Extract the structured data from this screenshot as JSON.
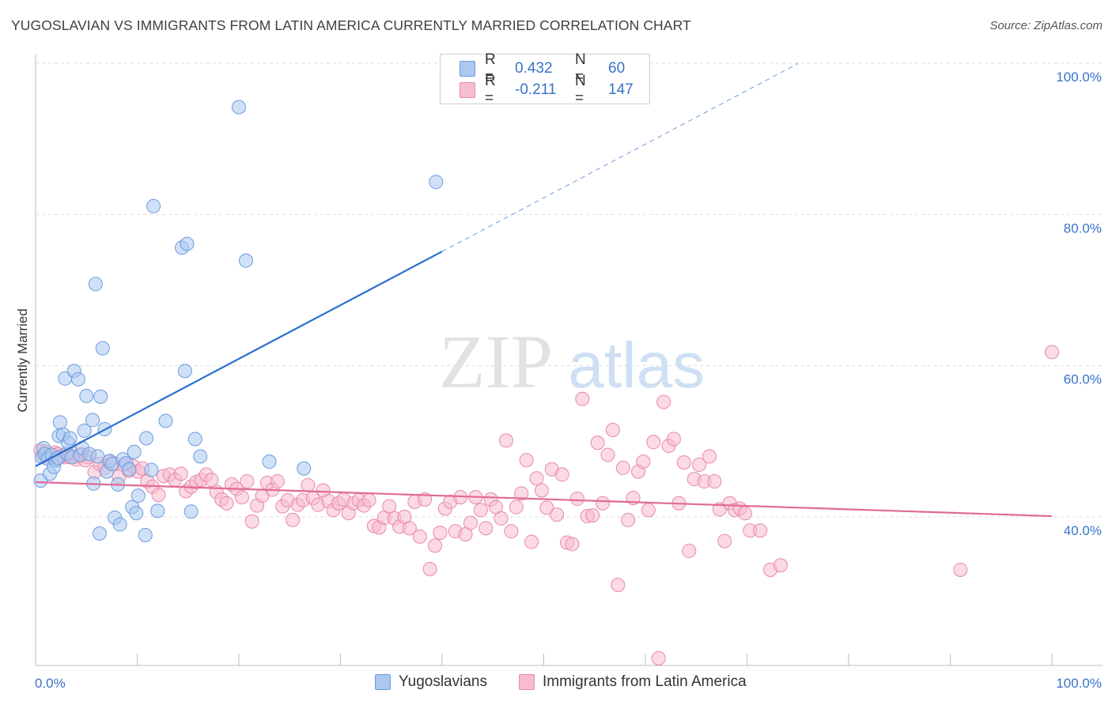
{
  "header": {
    "title": "YUGOSLAVIAN VS IMMIGRANTS FROM LATIN AMERICA CURRENTLY MARRIED CORRELATION CHART",
    "source": "Source: ZipAtlas.com"
  },
  "watermark": {
    "zip": "ZIP",
    "atlas": "atlas"
  },
  "legend": {
    "rows": [
      {
        "r_label": "R =",
        "r_value": "0.432",
        "n_label": "N =",
        "n_value": "60"
      },
      {
        "r_label": "R =",
        "r_value": "-0.211",
        "n_label": "N =",
        "n_value": "147"
      }
    ]
  },
  "bottom_legend": {
    "items": [
      "Yugoslavians",
      "Immigrants from Latin America"
    ]
  },
  "colors": {
    "blue_fill": "#aac8f0",
    "blue_stroke": "#6b9be0",
    "blue_line": "#2a6fd0",
    "pink_fill": "#f7bcd0",
    "pink_stroke": "#e888a8",
    "pink_line": "#e06a98",
    "tick_text": "#3a72c8",
    "grid": "#dcdcdc"
  },
  "chart_data": {
    "type": "scatter",
    "title": "YUGOSLAVIAN VS IMMIGRANTS FROM LATIN AMERICA CURRENTLY MARRIED CORRELATION CHART",
    "xlabel": "",
    "ylabel": "Currently Married",
    "xlim": [
      0,
      100
    ],
    "ylim": [
      20,
      104
    ],
    "x_tick_labels": [
      "0.0%",
      "100.0%"
    ],
    "y_ticks": [
      40,
      60,
      80,
      100
    ],
    "y_tick_labels": [
      "40.0%",
      "60.0%",
      "80.0%",
      "100.0%"
    ],
    "grid": true,
    "legend_position": "top-center",
    "series": [
      {
        "name": "Yugoslavians",
        "color": "#aac8f0",
        "trend": {
          "x": [
            0,
            40
          ],
          "y": [
            46.7,
            75.1
          ],
          "extended_to": [
            75,
            100
          ]
        },
        "points": [
          [
            0.5,
            44.8
          ],
          [
            0.6,
            47.9
          ],
          [
            0.8,
            49.1
          ],
          [
            0.9,
            48.3
          ],
          [
            1.2,
            47.7
          ],
          [
            1.4,
            45.7
          ],
          [
            1.6,
            48.2
          ],
          [
            1.8,
            46.6
          ],
          [
            2.0,
            47.5
          ],
          [
            2.2,
            47.8
          ],
          [
            2.3,
            50.7
          ],
          [
            2.4,
            52.5
          ],
          [
            2.7,
            50.9
          ],
          [
            2.9,
            58.3
          ],
          [
            3.1,
            48.4
          ],
          [
            3.2,
            49.8
          ],
          [
            3.4,
            50.4
          ],
          [
            3.6,
            47.9
          ],
          [
            3.8,
            59.3
          ],
          [
            4.2,
            58.2
          ],
          [
            4.4,
            48.2
          ],
          [
            4.6,
            49.1
          ],
          [
            4.8,
            51.4
          ],
          [
            5.0,
            56.0
          ],
          [
            5.3,
            48.3
          ],
          [
            5.6,
            52.8
          ],
          [
            5.7,
            44.4
          ],
          [
            5.9,
            70.8
          ],
          [
            6.1,
            48.0
          ],
          [
            6.3,
            37.8
          ],
          [
            6.4,
            55.9
          ],
          [
            6.6,
            62.3
          ],
          [
            6.8,
            51.6
          ],
          [
            7.0,
            46.0
          ],
          [
            7.3,
            47.4
          ],
          [
            7.5,
            47.0
          ],
          [
            7.8,
            39.9
          ],
          [
            8.1,
            44.3
          ],
          [
            8.3,
            39.0
          ],
          [
            8.6,
            47.6
          ],
          [
            8.9,
            47.1
          ],
          [
            9.2,
            46.3
          ],
          [
            9.5,
            41.3
          ],
          [
            9.7,
            48.6
          ],
          [
            9.9,
            40.5
          ],
          [
            10.1,
            42.8
          ],
          [
            10.8,
            37.6
          ],
          [
            10.9,
            50.4
          ],
          [
            11.4,
            46.2
          ],
          [
            11.6,
            81.1
          ],
          [
            12.0,
            40.8
          ],
          [
            12.8,
            52.7
          ],
          [
            14.4,
            75.6
          ],
          [
            14.7,
            59.3
          ],
          [
            14.9,
            76.1
          ],
          [
            15.3,
            40.7
          ],
          [
            15.7,
            50.3
          ],
          [
            16.2,
            48.0
          ],
          [
            20.0,
            94.2
          ],
          [
            20.7,
            73.9
          ],
          [
            23.0,
            47.3
          ],
          [
            26.4,
            46.4
          ],
          [
            39.4,
            84.3
          ]
        ]
      },
      {
        "name": "Immigrants from Latin America",
        "color": "#f7bcd0",
        "trend": {
          "x": [
            0,
            100
          ],
          "y": [
            44.6,
            40.1
          ]
        },
        "points": [
          [
            0.5,
            48.8
          ],
          [
            0.8,
            48.0
          ],
          [
            1.0,
            48.6
          ],
          [
            1.3,
            48.2
          ],
          [
            1.6,
            47.8
          ],
          [
            1.9,
            48.5
          ],
          [
            2.2,
            48.3
          ],
          [
            2.5,
            48.0
          ],
          [
            2.8,
            47.9
          ],
          [
            3.1,
            48.1
          ],
          [
            3.4,
            47.9
          ],
          [
            3.7,
            48.4
          ],
          [
            4.0,
            47.6
          ],
          [
            4.3,
            48.0
          ],
          [
            4.6,
            48.3
          ],
          [
            4.9,
            47.5
          ],
          [
            5.2,
            47.9
          ],
          [
            5.8,
            45.9
          ],
          [
            6.3,
            47.0
          ],
          [
            6.8,
            46.5
          ],
          [
            7.2,
            47.3
          ],
          [
            7.7,
            47.1
          ],
          [
            8.2,
            45.3
          ],
          [
            8.7,
            46.9
          ],
          [
            9.2,
            46.1
          ],
          [
            9.6,
            46.7
          ],
          [
            10.1,
            46.0
          ],
          [
            10.5,
            46.4
          ],
          [
            11.0,
            44.7
          ],
          [
            11.5,
            44.0
          ],
          [
            12.1,
            42.9
          ],
          [
            12.6,
            45.4
          ],
          [
            13.2,
            45.6
          ],
          [
            13.7,
            44.9
          ],
          [
            14.3,
            45.7
          ],
          [
            14.8,
            43.4
          ],
          [
            15.3,
            44.0
          ],
          [
            15.8,
            44.6
          ],
          [
            16.3,
            44.9
          ],
          [
            16.8,
            45.6
          ],
          [
            17.3,
            44.9
          ],
          [
            17.8,
            43.3
          ],
          [
            18.3,
            42.3
          ],
          [
            18.8,
            41.8
          ],
          [
            19.3,
            44.3
          ],
          [
            19.8,
            43.7
          ],
          [
            20.3,
            42.6
          ],
          [
            20.8,
            44.7
          ],
          [
            21.3,
            39.4
          ],
          [
            21.8,
            41.5
          ],
          [
            22.3,
            42.8
          ],
          [
            22.8,
            44.5
          ],
          [
            23.3,
            43.6
          ],
          [
            23.8,
            44.7
          ],
          [
            24.3,
            41.4
          ],
          [
            24.8,
            42.2
          ],
          [
            25.3,
            39.6
          ],
          [
            25.8,
            41.6
          ],
          [
            26.3,
            42.2
          ],
          [
            26.8,
            44.2
          ],
          [
            27.3,
            42.5
          ],
          [
            27.8,
            41.6
          ],
          [
            28.3,
            43.5
          ],
          [
            28.8,
            42.1
          ],
          [
            29.3,
            40.9
          ],
          [
            29.8,
            41.8
          ],
          [
            30.3,
            42.3
          ],
          [
            30.8,
            40.5
          ],
          [
            31.3,
            41.8
          ],
          [
            31.8,
            42.2
          ],
          [
            32.3,
            41.5
          ],
          [
            32.8,
            42.2
          ],
          [
            33.3,
            38.8
          ],
          [
            33.8,
            38.6
          ],
          [
            34.3,
            39.9
          ],
          [
            34.8,
            41.4
          ],
          [
            35.3,
            39.8
          ],
          [
            35.8,
            38.7
          ],
          [
            36.3,
            40.0
          ],
          [
            36.8,
            38.5
          ],
          [
            37.3,
            42.0
          ],
          [
            37.8,
            37.4
          ],
          [
            38.3,
            42.3
          ],
          [
            38.8,
            33.1
          ],
          [
            39.3,
            36.2
          ],
          [
            39.8,
            37.9
          ],
          [
            40.3,
            41.1
          ],
          [
            40.8,
            42.0
          ],
          [
            41.3,
            38.1
          ],
          [
            41.8,
            42.6
          ],
          [
            42.3,
            37.7
          ],
          [
            42.8,
            39.2
          ],
          [
            43.3,
            42.6
          ],
          [
            43.8,
            40.9
          ],
          [
            44.3,
            38.5
          ],
          [
            44.8,
            42.3
          ],
          [
            45.3,
            41.3
          ],
          [
            45.8,
            39.8
          ],
          [
            46.3,
            50.1
          ],
          [
            46.8,
            38.1
          ],
          [
            47.3,
            41.3
          ],
          [
            47.8,
            43.1
          ],
          [
            48.3,
            47.5
          ],
          [
            48.8,
            36.7
          ],
          [
            49.3,
            45.1
          ],
          [
            49.8,
            43.5
          ],
          [
            50.3,
            41.2
          ],
          [
            50.8,
            46.3
          ],
          [
            51.3,
            40.3
          ],
          [
            51.8,
            45.6
          ],
          [
            52.3,
            36.6
          ],
          [
            52.8,
            36.4
          ],
          [
            53.3,
            42.4
          ],
          [
            53.8,
            55.6
          ],
          [
            54.3,
            40.1
          ],
          [
            54.8,
            40.2
          ],
          [
            55.3,
            49.8
          ],
          [
            55.8,
            41.8
          ],
          [
            56.3,
            48.2
          ],
          [
            56.8,
            51.5
          ],
          [
            57.3,
            31.0
          ],
          [
            57.8,
            46.5
          ],
          [
            58.3,
            39.6
          ],
          [
            58.8,
            42.5
          ],
          [
            59.3,
            46.0
          ],
          [
            59.8,
            47.3
          ],
          [
            60.3,
            40.9
          ],
          [
            60.8,
            49.9
          ],
          [
            61.3,
            21.3
          ],
          [
            61.8,
            55.2
          ],
          [
            62.3,
            49.4
          ],
          [
            62.8,
            50.3
          ],
          [
            63.3,
            41.8
          ],
          [
            63.8,
            47.2
          ],
          [
            64.3,
            35.5
          ],
          [
            64.8,
            45.0
          ],
          [
            65.3,
            46.9
          ],
          [
            65.8,
            44.7
          ],
          [
            66.3,
            48.0
          ],
          [
            66.8,
            44.7
          ],
          [
            67.3,
            41.0
          ],
          [
            67.8,
            36.8
          ],
          [
            68.3,
            41.8
          ],
          [
            68.8,
            40.9
          ],
          [
            69.3,
            41.1
          ],
          [
            69.8,
            40.5
          ],
          [
            70.3,
            38.2
          ],
          [
            71.3,
            38.2
          ],
          [
            72.3,
            33.0
          ],
          [
            73.3,
            33.6
          ],
          [
            91.0,
            33.0
          ],
          [
            100.0,
            61.8
          ]
        ]
      }
    ]
  }
}
